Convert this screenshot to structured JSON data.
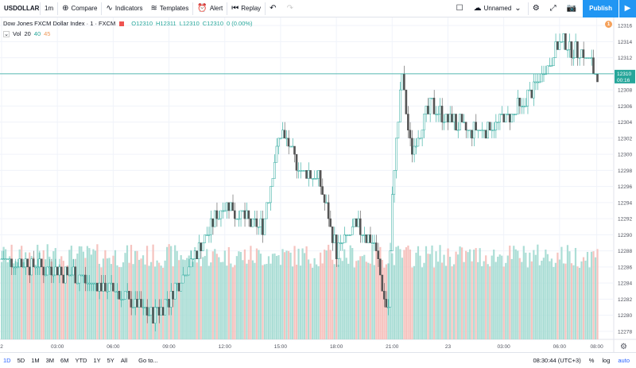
{
  "toolbar": {
    "symbol": "USDOLLAR",
    "interval": "1m",
    "compare": "Compare",
    "indicators": "Indicators",
    "templates": "Templates",
    "alert": "Alert",
    "replay": "Replay",
    "layout_name": "Unnamed",
    "publish": "Publish"
  },
  "legend": {
    "title": "Dow Jones FXCM Dollar Index · 1 · FXCM",
    "open": "O12310",
    "high": "H12311",
    "low": "L12310",
    "close": "C12310",
    "change": "0 (0.00%)",
    "alert_count": "1"
  },
  "volume_legend": {
    "label": "Vol",
    "v1": "20",
    "v2": "40",
    "v3": "45"
  },
  "price_axis": {
    "ticks": [
      "12316",
      "12314",
      "12312",
      "12310",
      "12308",
      "12306",
      "12304",
      "12302",
      "12300",
      "12298",
      "12296",
      "12294",
      "12292",
      "12290",
      "12288",
      "12286",
      "12284",
      "12282",
      "12280",
      "12278"
    ],
    "current_price": "12310",
    "countdown": "00:16"
  },
  "time_axis": {
    "ticks": [
      "2",
      "03:00",
      "06:00",
      "09:00",
      "12:00",
      "15:00",
      "18:00",
      "21:00",
      "23",
      "03:00",
      "06:00",
      "08:00"
    ]
  },
  "bottom": {
    "ranges": [
      "1D",
      "5D",
      "1M",
      "3M",
      "6M",
      "YTD",
      "1Y",
      "5Y",
      "All"
    ],
    "goto": "Go to...",
    "clock": "08:30:44 (UTC+3)",
    "percent": "%",
    "log": "log",
    "auto": "auto"
  },
  "colors": {
    "up": "#26a69a",
    "down": "#ef5350",
    "price_line": "#26a69a",
    "volume": "#9ed8cf"
  },
  "chart_data": {
    "type": "candlestick",
    "symbol": "USDOLLAR",
    "interval": "1m",
    "ylim": [
      12277,
      12317
    ],
    "x_ticks": [
      "2",
      "03:00",
      "06:00",
      "09:00",
      "12:00",
      "15:00",
      "18:00",
      "21:00",
      "23",
      "03:00",
      "06:00",
      "08:00"
    ],
    "price_path": [
      {
        "t": "00:00",
        "price": 12287
      },
      {
        "t": "02:00",
        "price": 12286
      },
      {
        "t": "04:00",
        "price": 12285
      },
      {
        "t": "06:00",
        "price": 12283
      },
      {
        "t": "08:00",
        "price": 12280
      },
      {
        "t": "09:00",
        "price": 12282
      },
      {
        "t": "10:00",
        "price": 12286
      },
      {
        "t": "11:00",
        "price": 12290
      },
      {
        "t": "12:00",
        "price": 12294
      },
      {
        "t": "13:00",
        "price": 12292
      },
      {
        "t": "14:00",
        "price": 12291
      },
      {
        "t": "15:00",
        "price": 12303
      },
      {
        "t": "16:00",
        "price": 12298
      },
      {
        "t": "17:00",
        "price": 12297
      },
      {
        "t": "18:00",
        "price": 12288
      },
      {
        "t": "19:00",
        "price": 12291
      },
      {
        "t": "20:00",
        "price": 12289
      },
      {
        "t": "20:45",
        "price": 12280
      },
      {
        "t": "21:00",
        "price": 12296
      },
      {
        "t": "21:30",
        "price": 12310
      },
      {
        "t": "22:00",
        "price": 12300
      },
      {
        "t": "23:00",
        "price": 12306
      },
      {
        "t": "01:00",
        "price": 12303
      },
      {
        "t": "02:00",
        "price": 12303
      },
      {
        "t": "04:00",
        "price": 12306
      },
      {
        "t": "05:00",
        "price": 12310
      },
      {
        "t": "06:00",
        "price": 12314
      },
      {
        "t": "07:00",
        "price": 12313
      },
      {
        "t": "08:00",
        "price": 12310
      }
    ],
    "last_price": 12310
  }
}
